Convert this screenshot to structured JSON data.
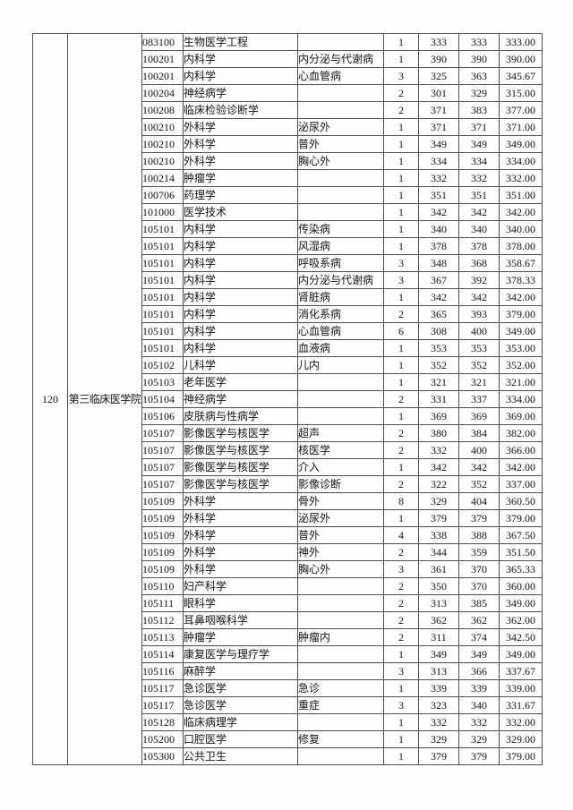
{
  "colors": {
    "page_background": "#fefefe",
    "table_border": "#4f4f4f",
    "text": "#151515"
  },
  "table": {
    "group": {
      "number": "120",
      "college": "第三临床医学院"
    },
    "rows": [
      {
        "code": "083100",
        "major": "生物医学工程",
        "direction": "",
        "admitted": "1",
        "min": "333",
        "max": "333",
        "avg": "333.00"
      },
      {
        "code": "100201",
        "major": "内科学",
        "direction": "内分泌与代谢病",
        "admitted": "1",
        "min": "390",
        "max": "390",
        "avg": "390.00"
      },
      {
        "code": "100201",
        "major": "内科学",
        "direction": "心血管病",
        "admitted": "3",
        "min": "325",
        "max": "363",
        "avg": "345.67"
      },
      {
        "code": "100204",
        "major": "神经病学",
        "direction": "",
        "admitted": "2",
        "min": "301",
        "max": "329",
        "avg": "315.00"
      },
      {
        "code": "100208",
        "major": "临床检验诊断学",
        "direction": "",
        "admitted": "2",
        "min": "371",
        "max": "383",
        "avg": "377.00"
      },
      {
        "code": "100210",
        "major": "外科学",
        "direction": "泌尿外",
        "admitted": "1",
        "min": "371",
        "max": "371",
        "avg": "371.00"
      },
      {
        "code": "100210",
        "major": "外科学",
        "direction": "普外",
        "admitted": "1",
        "min": "349",
        "max": "349",
        "avg": "349.00"
      },
      {
        "code": "100210",
        "major": "外科学",
        "direction": "胸心外",
        "admitted": "1",
        "min": "334",
        "max": "334",
        "avg": "334.00"
      },
      {
        "code": "100214",
        "major": "肿瘤学",
        "direction": "",
        "admitted": "1",
        "min": "332",
        "max": "332",
        "avg": "332.00"
      },
      {
        "code": "100706",
        "major": "药理学",
        "direction": "",
        "admitted": "1",
        "min": "351",
        "max": "351",
        "avg": "351.00"
      },
      {
        "code": "101000",
        "major": "医学技术",
        "direction": "",
        "admitted": "1",
        "min": "342",
        "max": "342",
        "avg": "342.00"
      },
      {
        "code": "105101",
        "major": "内科学",
        "direction": "传染病",
        "admitted": "1",
        "min": "340",
        "max": "340",
        "avg": "340.00"
      },
      {
        "code": "105101",
        "major": "内科学",
        "direction": "风湿病",
        "admitted": "1",
        "min": "378",
        "max": "378",
        "avg": "378.00"
      },
      {
        "code": "105101",
        "major": "内科学",
        "direction": "呼吸系病",
        "admitted": "3",
        "min": "348",
        "max": "368",
        "avg": "358.67"
      },
      {
        "code": "105101",
        "major": "内科学",
        "direction": "内分泌与代谢病",
        "admitted": "3",
        "min": "367",
        "max": "392",
        "avg": "378.33"
      },
      {
        "code": "105101",
        "major": "内科学",
        "direction": "肾脏病",
        "admitted": "1",
        "min": "342",
        "max": "342",
        "avg": "342.00"
      },
      {
        "code": "105101",
        "major": "内科学",
        "direction": "消化系病",
        "admitted": "2",
        "min": "365",
        "max": "393",
        "avg": "379.00"
      },
      {
        "code": "105101",
        "major": "内科学",
        "direction": "心血管病",
        "admitted": "6",
        "min": "308",
        "max": "400",
        "avg": "349.00"
      },
      {
        "code": "105101",
        "major": "内科学",
        "direction": "血液病",
        "admitted": "1",
        "min": "353",
        "max": "353",
        "avg": "353.00"
      },
      {
        "code": "105102",
        "major": "儿科学",
        "direction": "儿内",
        "admitted": "1",
        "min": "352",
        "max": "352",
        "avg": "352.00"
      },
      {
        "code": "105103",
        "major": "老年医学",
        "direction": "",
        "admitted": "1",
        "min": "321",
        "max": "321",
        "avg": "321.00"
      },
      {
        "code": "105104",
        "major": "神经病学",
        "direction": "",
        "admitted": "2",
        "min": "331",
        "max": "337",
        "avg": "334.00"
      },
      {
        "code": "105106",
        "major": "皮肤病与性病学",
        "direction": "",
        "admitted": "1",
        "min": "369",
        "max": "369",
        "avg": "369.00"
      },
      {
        "code": "105107",
        "major": "影像医学与核医学",
        "direction": "超声",
        "admitted": "2",
        "min": "380",
        "max": "384",
        "avg": "382.00"
      },
      {
        "code": "105107",
        "major": "影像医学与核医学",
        "direction": "核医学",
        "admitted": "2",
        "min": "332",
        "max": "400",
        "avg": "366.00"
      },
      {
        "code": "105107",
        "major": "影像医学与核医学",
        "direction": "介入",
        "admitted": "1",
        "min": "342",
        "max": "342",
        "avg": "342.00"
      },
      {
        "code": "105107",
        "major": "影像医学与核医学",
        "direction": "影像诊断",
        "admitted": "2",
        "min": "322",
        "max": "352",
        "avg": "337.00"
      },
      {
        "code": "105109",
        "major": "外科学",
        "direction": "骨外",
        "admitted": "8",
        "min": "329",
        "max": "404",
        "avg": "360.50"
      },
      {
        "code": "105109",
        "major": "外科学",
        "direction": "泌尿外",
        "admitted": "1",
        "min": "379",
        "max": "379",
        "avg": "379.00"
      },
      {
        "code": "105109",
        "major": "外科学",
        "direction": "普外",
        "admitted": "4",
        "min": "338",
        "max": "388",
        "avg": "367.50"
      },
      {
        "code": "105109",
        "major": "外科学",
        "direction": "神外",
        "admitted": "2",
        "min": "344",
        "max": "359",
        "avg": "351.50"
      },
      {
        "code": "105109",
        "major": "外科学",
        "direction": "胸心外",
        "admitted": "3",
        "min": "361",
        "max": "370",
        "avg": "365.33"
      },
      {
        "code": "105110",
        "major": "妇产科学",
        "direction": "",
        "admitted": "2",
        "min": "350",
        "max": "370",
        "avg": "360.00"
      },
      {
        "code": "105111",
        "major": "眼科学",
        "direction": "",
        "admitted": "2",
        "min": "313",
        "max": "385",
        "avg": "349.00"
      },
      {
        "code": "105112",
        "major": "耳鼻咽喉科学",
        "direction": "",
        "admitted": "2",
        "min": "362",
        "max": "362",
        "avg": "362.00"
      },
      {
        "code": "105113",
        "major": "肿瘤学",
        "direction": "肿瘤内",
        "admitted": "2",
        "min": "311",
        "max": "374",
        "avg": "342.50"
      },
      {
        "code": "105114",
        "major": "康复医学与理疗学",
        "direction": "",
        "admitted": "1",
        "min": "349",
        "max": "349",
        "avg": "349.00"
      },
      {
        "code": "105116",
        "major": "麻醉学",
        "direction": "",
        "admitted": "3",
        "min": "313",
        "max": "366",
        "avg": "337.67"
      },
      {
        "code": "105117",
        "major": "急诊医学",
        "direction": "急诊",
        "admitted": "1",
        "min": "339",
        "max": "339",
        "avg": "339.00"
      },
      {
        "code": "105117",
        "major": "急诊医学",
        "direction": "重症",
        "admitted": "3",
        "min": "323",
        "max": "340",
        "avg": "331.67"
      },
      {
        "code": "105128",
        "major": "临床病理学",
        "direction": "",
        "admitted": "1",
        "min": "332",
        "max": "332",
        "avg": "332.00"
      },
      {
        "code": "105200",
        "major": "口腔医学",
        "direction": "修复",
        "admitted": "1",
        "min": "329",
        "max": "329",
        "avg": "329.00"
      },
      {
        "code": "105300",
        "major": "公共卫生",
        "direction": "",
        "admitted": "1",
        "min": "379",
        "max": "379",
        "avg": "379.00"
      }
    ]
  }
}
